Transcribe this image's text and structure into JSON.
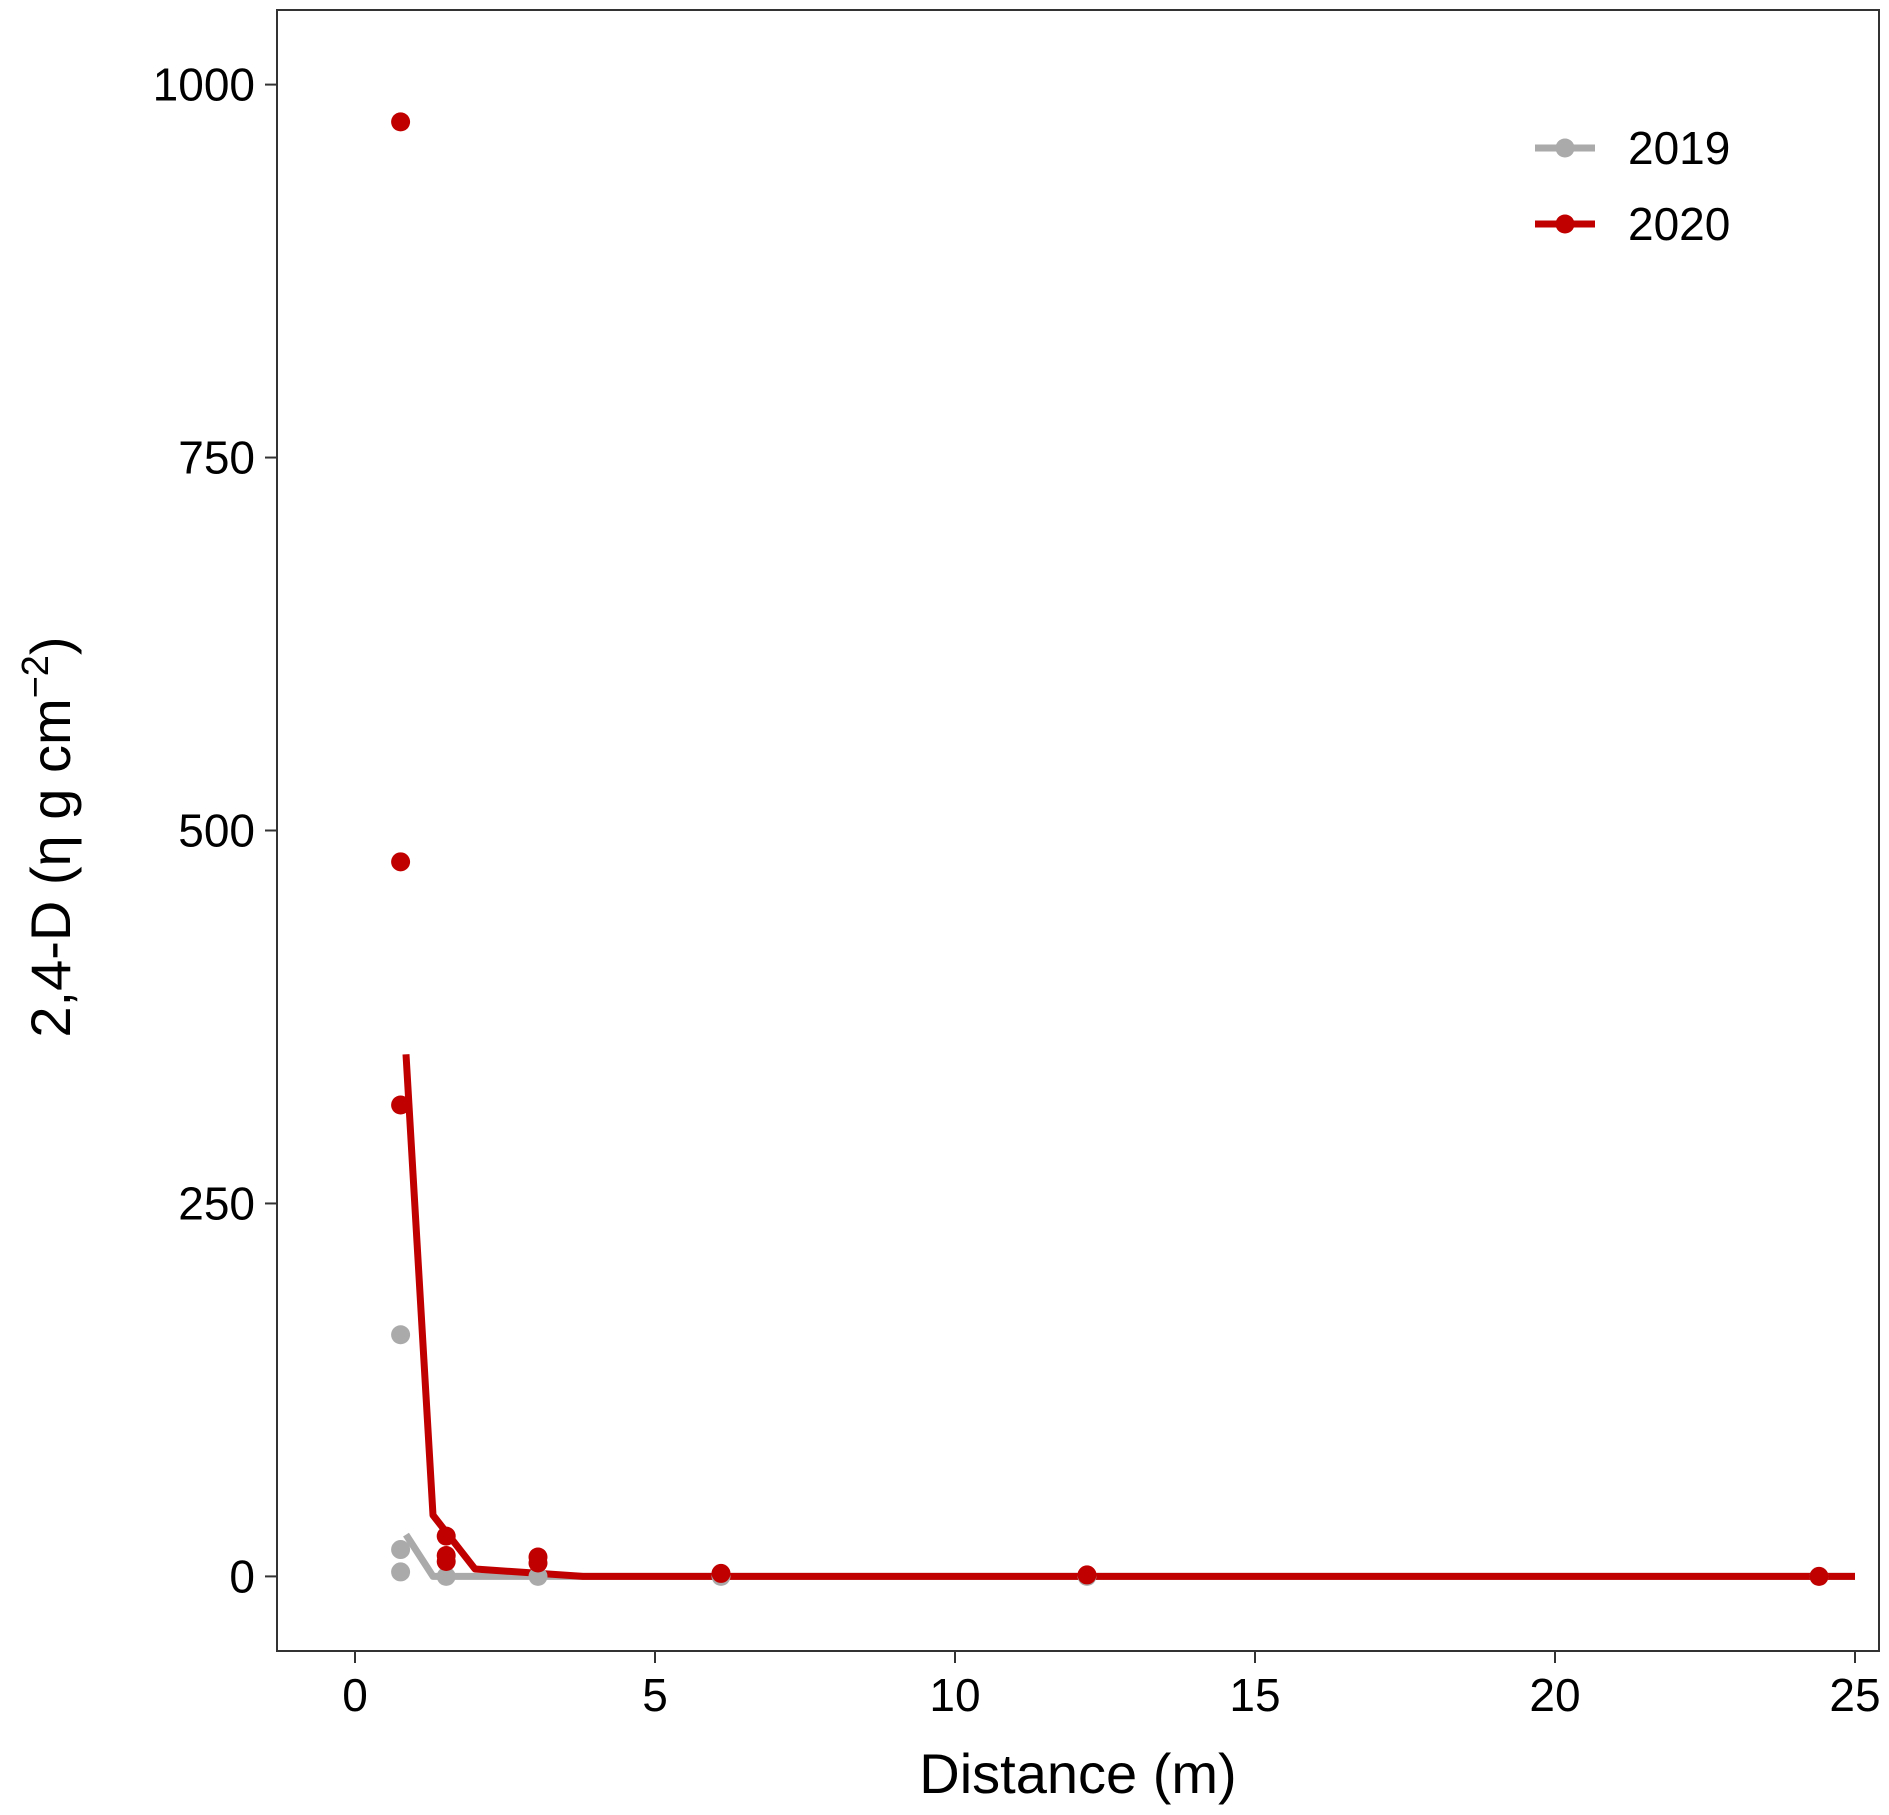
{
  "chart_data": {
    "type": "scatter",
    "xlabel": "Distance (m)",
    "ylabel_parts": {
      "main": "2,4-D (η g cm",
      "superscript": "−2",
      "close": ")"
    },
    "xlim": [
      -1.3,
      25.4
    ],
    "ylim": [
      -50,
      1050
    ],
    "x_ticks": [
      0,
      5,
      10,
      15,
      20,
      25
    ],
    "y_ticks": [
      0,
      250,
      500,
      750,
      1000
    ],
    "grid": false,
    "legend_position": "top-right",
    "series": [
      {
        "name": "2019",
        "color": "#aaaaaa",
        "points": [
          {
            "x": 0.76,
            "y": 162
          },
          {
            "x": 0.76,
            "y": 18
          },
          {
            "x": 0.76,
            "y": 3
          },
          {
            "x": 1.52,
            "y": 0
          },
          {
            "x": 3.05,
            "y": 0
          },
          {
            "x": 6.1,
            "y": 0
          },
          {
            "x": 12.2,
            "y": 0
          },
          {
            "x": 24.4,
            "y": 0
          }
        ],
        "fit": [
          {
            "x": 0.85,
            "y": 28
          },
          {
            "x": 1.3,
            "y": 0
          },
          {
            "x": 3.8,
            "y": 0
          },
          {
            "x": 25,
            "y": 0
          }
        ]
      },
      {
        "name": "2020",
        "color": "#c00000",
        "points": [
          {
            "x": 0.76,
            "y": 975
          },
          {
            "x": 0.76,
            "y": 479
          },
          {
            "x": 0.76,
            "y": 316
          },
          {
            "x": 1.52,
            "y": 27
          },
          {
            "x": 1.52,
            "y": 14
          },
          {
            "x": 1.52,
            "y": 10
          },
          {
            "x": 3.05,
            "y": 13
          },
          {
            "x": 3.05,
            "y": 9
          },
          {
            "x": 6.1,
            "y": 2
          },
          {
            "x": 12.2,
            "y": 1
          },
          {
            "x": 24.4,
            "y": 0
          }
        ],
        "fit": [
          {
            "x": 0.85,
            "y": 350
          },
          {
            "x": 1.3,
            "y": 41
          },
          {
            "x": 2.0,
            "y": 5
          },
          {
            "x": 3.8,
            "y": 0
          },
          {
            "x": 25,
            "y": 0
          }
        ]
      }
    ]
  }
}
